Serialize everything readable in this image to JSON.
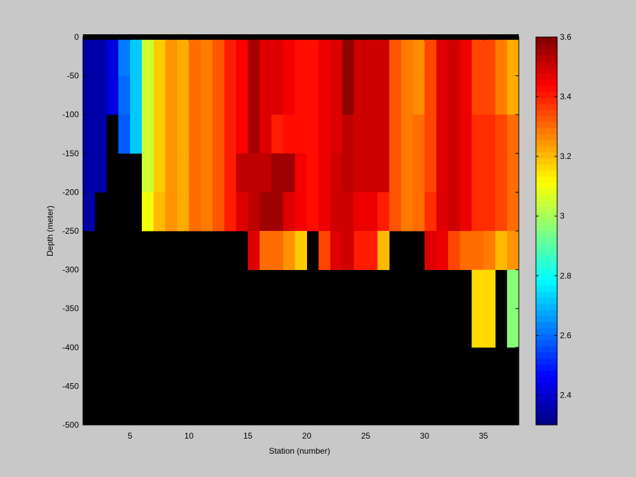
{
  "chart_data": {
    "type": "heatmap",
    "title": "",
    "xlabel": "Station (number)",
    "ylabel": "Depth (meter)",
    "xlim": [
      1,
      38
    ],
    "ylim": [
      -500,
      0
    ],
    "x_ticks": [
      5,
      10,
      15,
      20,
      25,
      30,
      35
    ],
    "y_ticks": [
      0,
      -50,
      -100,
      -150,
      -200,
      -250,
      -300,
      -350,
      -400,
      -450,
      -500
    ],
    "colormap": "jet",
    "missing_color": "#000000",
    "colorbar": {
      "range": [
        2.3,
        3.6
      ],
      "ticks": [
        2.4,
        2.6,
        2.8,
        3,
        3.2,
        3.4,
        3.6
      ],
      "tick_labels": [
        "2.4",
        "2.6",
        "2.8",
        "3",
        "3.2",
        "3.4",
        "3.6"
      ]
    },
    "stations": [
      1,
      2,
      3,
      4,
      5,
      6,
      7,
      8,
      9,
      10,
      11,
      12,
      13,
      14,
      15,
      16,
      17,
      18,
      19,
      20,
      21,
      22,
      23,
      24,
      25,
      26,
      27,
      28,
      29,
      30,
      31,
      32,
      33,
      34,
      35,
      36,
      37
    ],
    "depths": [
      0,
      -50,
      -100,
      -150,
      -200,
      -250,
      -300,
      -350,
      -400,
      -450
    ],
    "values": [
      [
        2.35,
        2.35,
        2.42,
        2.62,
        2.72,
        3.05,
        3.18,
        3.25,
        3.22,
        3.3,
        3.28,
        3.33,
        3.4,
        3.44,
        3.55,
        3.48,
        3.48,
        3.45,
        3.42,
        3.42,
        3.46,
        3.48,
        3.58,
        3.5,
        3.5,
        3.5,
        3.33,
        3.28,
        3.26,
        3.35,
        3.48,
        3.5,
        3.46,
        3.35,
        3.35,
        3.28,
        3.22
      ],
      [
        2.35,
        2.35,
        2.42,
        2.6,
        2.72,
        3.05,
        3.18,
        3.25,
        3.22,
        3.3,
        3.28,
        3.33,
        3.4,
        3.44,
        3.55,
        3.48,
        3.48,
        3.45,
        3.42,
        3.42,
        3.46,
        3.48,
        3.58,
        3.5,
        3.5,
        3.5,
        3.33,
        3.28,
        3.26,
        3.35,
        3.48,
        3.5,
        3.46,
        3.35,
        3.35,
        3.28,
        3.22
      ],
      [
        2.35,
        2.35,
        null,
        2.58,
        2.72,
        3.05,
        3.18,
        3.25,
        3.22,
        3.3,
        3.28,
        3.33,
        3.4,
        3.44,
        3.55,
        3.48,
        3.4,
        3.42,
        3.42,
        3.42,
        3.46,
        3.48,
        3.52,
        3.5,
        3.5,
        3.5,
        3.33,
        3.28,
        3.3,
        3.35,
        3.48,
        3.5,
        3.46,
        3.38,
        3.38,
        3.35,
        3.3
      ],
      [
        2.35,
        2.35,
        null,
        null,
        null,
        3.05,
        3.18,
        3.25,
        3.22,
        3.3,
        3.28,
        3.33,
        3.4,
        3.52,
        3.52,
        3.52,
        3.56,
        3.56,
        3.45,
        3.42,
        3.46,
        3.5,
        3.52,
        3.5,
        3.5,
        3.5,
        3.33,
        3.28,
        3.3,
        3.35,
        3.48,
        3.5,
        3.46,
        3.38,
        3.38,
        3.35,
        3.3
      ],
      [
        2.35,
        null,
        null,
        null,
        null,
        3.1,
        3.2,
        3.25,
        3.22,
        3.3,
        3.28,
        3.33,
        3.4,
        3.48,
        3.52,
        3.56,
        3.56,
        3.48,
        3.45,
        3.42,
        3.46,
        3.5,
        3.5,
        3.46,
        3.46,
        3.4,
        3.33,
        3.28,
        3.3,
        3.38,
        3.48,
        3.5,
        3.46,
        3.38,
        3.38,
        3.35,
        3.3
      ],
      [
        null,
        null,
        null,
        null,
        null,
        null,
        null,
        null,
        null,
        null,
        null,
        null,
        null,
        null,
        3.48,
        3.3,
        3.3,
        3.25,
        3.18,
        null,
        3.35,
        3.48,
        3.5,
        3.4,
        3.4,
        3.2,
        null,
        null,
        null,
        3.48,
        3.46,
        3.35,
        3.3,
        3.3,
        3.28,
        3.2,
        3.25
      ],
      [
        null,
        null,
        null,
        null,
        null,
        null,
        null,
        null,
        null,
        null,
        null,
        null,
        null,
        null,
        null,
        null,
        null,
        null,
        null,
        null,
        null,
        null,
        null,
        null,
        null,
        null,
        null,
        null,
        null,
        null,
        null,
        null,
        null,
        3.16,
        3.16,
        null,
        2.96
      ],
      [
        null,
        null,
        null,
        null,
        null,
        null,
        null,
        null,
        null,
        null,
        null,
        null,
        null,
        null,
        null,
        null,
        null,
        null,
        null,
        null,
        null,
        null,
        null,
        null,
        null,
        null,
        null,
        null,
        null,
        null,
        null,
        null,
        null,
        3.16,
        3.16,
        null,
        2.96
      ],
      [
        null,
        null,
        null,
        null,
        null,
        null,
        null,
        null,
        null,
        null,
        null,
        null,
        null,
        null,
        null,
        null,
        null,
        null,
        null,
        null,
        null,
        null,
        null,
        null,
        null,
        null,
        null,
        null,
        null,
        null,
        null,
        null,
        null,
        null,
        null,
        null,
        null
      ],
      [
        null,
        null,
        null,
        null,
        null,
        null,
        null,
        null,
        null,
        null,
        null,
        null,
        null,
        null,
        null,
        null,
        null,
        null,
        null,
        null,
        null,
        null,
        null,
        null,
        null,
        null,
        null,
        null,
        null,
        null,
        null,
        null,
        null,
        null,
        null,
        null,
        null
      ]
    ]
  }
}
